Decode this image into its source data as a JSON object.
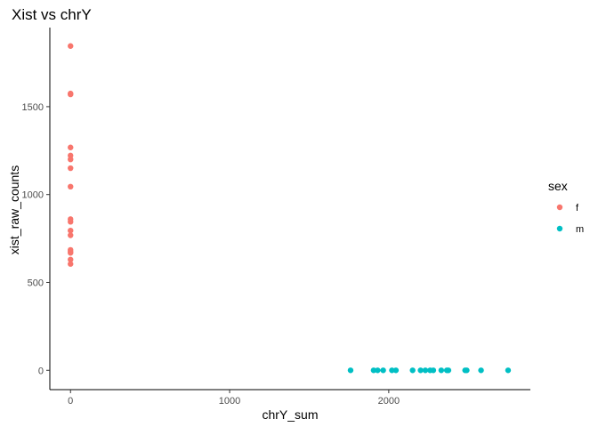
{
  "chart_data": {
    "type": "scatter",
    "title": "Xist vs chrY",
    "xlabel": "chrY_sum",
    "ylabel": "xist_raw_counts",
    "xlim": [
      -130,
      2890
    ],
    "ylim": [
      -110,
      1950
    ],
    "x_ticks": [
      0,
      1000,
      2000
    ],
    "y_ticks": [
      0,
      500,
      1000,
      1500
    ],
    "grid": false,
    "legend": {
      "title": "sex",
      "placement": "right",
      "entries": [
        {
          "label": "f",
          "color": "#F8766D"
        },
        {
          "label": "m",
          "color": "#00BFC4"
        }
      ]
    },
    "series": [
      {
        "name": "f",
        "color": "#F8766D",
        "points": [
          [
            0,
            1845
          ],
          [
            0,
            1575
          ],
          [
            0,
            1570
          ],
          [
            0,
            1268
          ],
          [
            0,
            1222
          ],
          [
            0,
            1200
          ],
          [
            0,
            1150
          ],
          [
            0,
            1045
          ],
          [
            0,
            860
          ],
          [
            0,
            845
          ],
          [
            0,
            795
          ],
          [
            0,
            768
          ],
          [
            0,
            685
          ],
          [
            0,
            675
          ],
          [
            0,
            668
          ],
          [
            0,
            630
          ],
          [
            0,
            605
          ]
        ]
      },
      {
        "name": "m",
        "color": "#00BFC4",
        "points": [
          [
            1760,
            0
          ],
          [
            1905,
            0
          ],
          [
            1930,
            0
          ],
          [
            1965,
            0
          ],
          [
            2020,
            0
          ],
          [
            2045,
            0
          ],
          [
            2150,
            0
          ],
          [
            2200,
            0
          ],
          [
            2230,
            0
          ],
          [
            2260,
            0
          ],
          [
            2280,
            0
          ],
          [
            2330,
            0
          ],
          [
            2365,
            0
          ],
          [
            2375,
            0
          ],
          [
            2480,
            0
          ],
          [
            2490,
            0
          ],
          [
            2580,
            0
          ],
          [
            2750,
            0
          ]
        ]
      }
    ]
  }
}
